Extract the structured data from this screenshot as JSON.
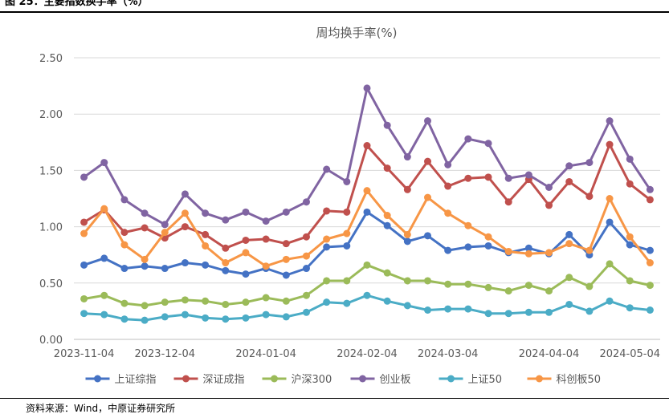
{
  "figure": {
    "title": "图 25：主要指数换手率（%）",
    "source": "资料来源：Wind，中原证券研究所"
  },
  "colors": {
    "grid": "#d9d9d9",
    "axis_text": "#595959",
    "title_text": "#595959"
  },
  "chart_data": {
    "type": "line",
    "title": "周均换手率(%)",
    "xlabel": "",
    "ylabel": "",
    "ylim": [
      0,
      2.5
    ],
    "yticks": [
      "0.00",
      "0.50",
      "1.00",
      "1.50",
      "2.00",
      "2.50"
    ],
    "x_tick_labels": [
      {
        "index": 0,
        "label": "2023-11-04"
      },
      {
        "index": 4,
        "label": "2023-12-04"
      },
      {
        "index": 9,
        "label": "2024-01-04"
      },
      {
        "index": 14,
        "label": "2024-02-04"
      },
      {
        "index": 18,
        "label": "2024-03-04"
      },
      {
        "index": 23,
        "label": "2024-04-04"
      },
      {
        "index": 27,
        "label": "2024-05-04"
      }
    ],
    "grid": true,
    "legend_position": "bottom",
    "series": [
      {
        "name": "上证综指",
        "color": "#4472c4",
        "values": [
          0.66,
          0.72,
          0.63,
          0.65,
          0.63,
          0.68,
          0.66,
          0.61,
          0.58,
          0.63,
          0.57,
          0.63,
          0.82,
          0.83,
          1.13,
          1.01,
          0.87,
          0.92,
          0.79,
          0.82,
          0.83,
          0.77,
          0.81,
          0.76,
          0.93,
          0.75,
          1.04,
          0.84,
          0.79
        ]
      },
      {
        "name": "深证成指",
        "color": "#c0504d",
        "values": [
          1.04,
          1.15,
          0.95,
          0.99,
          0.9,
          1.0,
          0.93,
          0.81,
          0.88,
          0.89,
          0.85,
          0.91,
          1.14,
          1.13,
          1.72,
          1.52,
          1.33,
          1.58,
          1.36,
          1.43,
          1.44,
          1.22,
          1.42,
          1.19,
          1.4,
          1.27,
          1.73,
          1.38,
          1.24
        ]
      },
      {
        "name": "沪深300",
        "color": "#9bbb59",
        "values": [
          0.36,
          0.39,
          0.32,
          0.3,
          0.33,
          0.35,
          0.34,
          0.31,
          0.33,
          0.37,
          0.34,
          0.39,
          0.52,
          0.52,
          0.66,
          0.59,
          0.52,
          0.52,
          0.49,
          0.49,
          0.46,
          0.43,
          0.48,
          0.43,
          0.55,
          0.47,
          0.67,
          0.52,
          0.48
        ]
      },
      {
        "name": "创业板",
        "color": "#8064a2",
        "values": [
          1.44,
          1.57,
          1.24,
          1.12,
          1.02,
          1.29,
          1.12,
          1.06,
          1.13,
          1.05,
          1.13,
          1.22,
          1.51,
          1.4,
          2.23,
          1.9,
          1.62,
          1.94,
          1.55,
          1.78,
          1.74,
          1.43,
          1.46,
          1.35,
          1.54,
          1.57,
          1.94,
          1.6,
          1.33
        ]
      },
      {
        "name": "上证50",
        "color": "#4bacc6",
        "values": [
          0.23,
          0.22,
          0.18,
          0.17,
          0.2,
          0.22,
          0.19,
          0.18,
          0.19,
          0.22,
          0.2,
          0.24,
          0.33,
          0.32,
          0.39,
          0.34,
          0.3,
          0.26,
          0.27,
          0.27,
          0.23,
          0.23,
          0.24,
          0.24,
          0.31,
          0.25,
          0.34,
          0.28,
          0.26
        ]
      },
      {
        "name": "科创板50",
        "color": "#f79646",
        "values": [
          0.94,
          1.16,
          0.84,
          0.71,
          0.95,
          1.12,
          0.83,
          0.68,
          0.77,
          0.65,
          0.71,
          0.74,
          0.89,
          0.94,
          1.32,
          1.1,
          0.93,
          1.26,
          1.12,
          1.01,
          0.91,
          0.78,
          0.76,
          0.77,
          0.85,
          0.79,
          1.25,
          0.91,
          0.68
        ]
      }
    ]
  }
}
